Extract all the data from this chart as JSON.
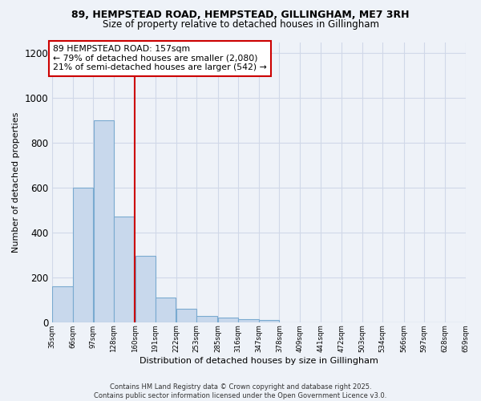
{
  "title1": "89, HEMPSTEAD ROAD, HEMPSTEAD, GILLINGHAM, ME7 3RH",
  "title2": "Size of property relative to detached houses in Gillingham",
  "xlabel": "Distribution of detached houses by size in Gillingham",
  "ylabel": "Number of detached properties",
  "bar_left_edges": [
    35,
    66,
    97,
    128,
    160,
    191,
    222,
    253,
    285,
    316,
    347,
    378,
    409,
    441,
    472,
    503,
    534,
    566,
    597,
    628
  ],
  "bar_heights": [
    160,
    600,
    900,
    470,
    295,
    110,
    60,
    28,
    20,
    15,
    10,
    0,
    0,
    0,
    0,
    0,
    0,
    0,
    0,
    0
  ],
  "bin_width": 31,
  "bar_color": "#c8d8ec",
  "bar_edge_color": "#7aaad0",
  "grid_color": "#d0d8e8",
  "vline_x": 160,
  "vline_color": "#cc0000",
  "annotation_text": "89 HEMPSTEAD ROAD: 157sqm\n← 79% of detached houses are smaller (2,080)\n21% of semi-detached houses are larger (542) →",
  "annotation_box_color": "#ffffff",
  "annotation_box_edgecolor": "#cc0000",
  "ylim": [
    0,
    1250
  ],
  "yticks": [
    0,
    200,
    400,
    600,
    800,
    1000,
    1200
  ],
  "tick_labels": [
    "35sqm",
    "66sqm",
    "97sqm",
    "128sqm",
    "160sqm",
    "191sqm",
    "222sqm",
    "253sqm",
    "285sqm",
    "316sqm",
    "347sqm",
    "378sqm",
    "409sqm",
    "441sqm",
    "472sqm",
    "503sqm",
    "534sqm",
    "566sqm",
    "597sqm",
    "628sqm",
    "659sqm"
  ],
  "footer_text": "Contains HM Land Registry data © Crown copyright and database right 2025.\nContains public sector information licensed under the Open Government Licence v3.0.",
  "bg_color": "#eef2f8"
}
